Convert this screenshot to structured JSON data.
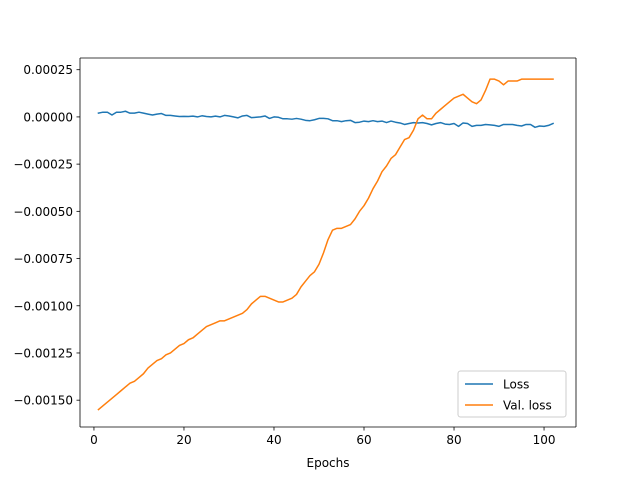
{
  "chart_data": {
    "type": "line",
    "title": "",
    "xlabel": "Epochs",
    "ylabel": "",
    "xlim": [
      -3.1,
      107.1
    ],
    "ylim": [
      -0.001642,
      0.000312
    ],
    "x_ticks": [
      0,
      20,
      40,
      60,
      80,
      100
    ],
    "x_tick_labels": [
      "0",
      "20",
      "40",
      "60",
      "80",
      "100"
    ],
    "y_ticks": [
      0.00025,
      0.0,
      -0.00025,
      -0.0005,
      -0.00075,
      -0.001,
      -0.00125,
      -0.0015
    ],
    "y_tick_labels": [
      "0.00025",
      "0.00000",
      "−0.00025",
      "−0.00050",
      "−0.00075",
      "−0.00100",
      "−0.00125",
      "−0.00150"
    ],
    "grid": false,
    "legend_position": "lower-right",
    "x": [
      1,
      2,
      3,
      4,
      5,
      6,
      7,
      8,
      9,
      10,
      11,
      12,
      13,
      14,
      15,
      16,
      17,
      18,
      19,
      20,
      21,
      22,
      23,
      24,
      25,
      26,
      27,
      28,
      29,
      30,
      31,
      32,
      33,
      34,
      35,
      36,
      37,
      38,
      39,
      40,
      41,
      42,
      43,
      44,
      45,
      46,
      47,
      48,
      49,
      50,
      51,
      52,
      53,
      54,
      55,
      56,
      57,
      58,
      59,
      60,
      61,
      62,
      63,
      64,
      65,
      66,
      67,
      68,
      69,
      70,
      71,
      72,
      73,
      74,
      75,
      76,
      77,
      78,
      79,
      80,
      81,
      82,
      83,
      84,
      85,
      86,
      87,
      88,
      89,
      90,
      91,
      92,
      93,
      94,
      95,
      96,
      97,
      98,
      99,
      100,
      101,
      102
    ],
    "series": [
      {
        "name": "Loss",
        "color": "#1f77b4",
        "values": [
          2e-05,
          2.5e-05,
          2.5e-05,
          1e-05,
          2.5e-05,
          2.5e-05,
          3e-05,
          2e-05,
          2e-05,
          2.5e-05,
          2e-05,
          1.5e-05,
          1e-05,
          1.5e-05,
          1.8e-05,
          8e-06,
          8e-06,
          5e-06,
          2e-06,
          3e-06,
          2e-06,
          4e-06,
          0.0,
          6e-06,
          2e-06,
          0.0,
          4e-06,
          0.0,
          8e-06,
          5e-06,
          0.0,
          -5e-06,
          5e-06,
          8e-06,
          -4e-06,
          -2e-06,
          0.0,
          5e-06,
          -8e-06,
          0.0,
          -2e-06,
          -1e-05,
          -1e-05,
          -1.2e-05,
          -8e-06,
          -1.2e-05,
          -1.8e-05,
          -2e-05,
          -1.5e-05,
          -8e-06,
          -8e-06,
          -1e-05,
          -2e-05,
          -2e-05,
          -2.5e-05,
          -2e-05,
          -1.8e-05,
          -3e-05,
          -2.8e-05,
          -2.2e-05,
          -2.5e-05,
          -2e-05,
          -2.5e-05,
          -2.2e-05,
          -3e-05,
          -2.2e-05,
          -2.8e-05,
          -3.2e-05,
          -4e-05,
          -3.5e-05,
          -3e-05,
          -3.2e-05,
          -3e-05,
          -3.5e-05,
          -4.2e-05,
          -3.5e-05,
          -3e-05,
          -3.8e-05,
          -4e-05,
          -3.5e-05,
          -5e-05,
          -3.2e-05,
          -3.5e-05,
          -5e-05,
          -4.5e-05,
          -4.5e-05,
          -4e-05,
          -4.2e-05,
          -4.5e-05,
          -5e-05,
          -4e-05,
          -4e-05,
          -4e-05,
          -4.5e-05,
          -4.8e-05,
          -4e-05,
          -4e-05,
          -5.5e-05,
          -4.8e-05,
          -5e-05,
          -4.5e-05,
          -3.5e-05
        ]
      },
      {
        "name": "Val. loss",
        "color": "#ff7f0e",
        "values": [
          -0.00155,
          -0.00153,
          -0.00151,
          -0.00149,
          -0.00147,
          -0.00145,
          -0.00143,
          -0.00141,
          -0.0014,
          -0.00138,
          -0.00136,
          -0.00133,
          -0.00131,
          -0.00129,
          -0.00128,
          -0.00126,
          -0.00125,
          -0.00123,
          -0.00121,
          -0.0012,
          -0.00118,
          -0.00117,
          -0.00115,
          -0.00113,
          -0.00111,
          -0.0011,
          -0.00109,
          -0.00108,
          -0.00108,
          -0.00107,
          -0.00106,
          -0.00105,
          -0.00104,
          -0.00102,
          -0.00099,
          -0.00097,
          -0.00095,
          -0.00095,
          -0.00096,
          -0.00097,
          -0.00098,
          -0.00098,
          -0.00097,
          -0.00096,
          -0.00094,
          -0.0009,
          -0.00087,
          -0.00084,
          -0.00082,
          -0.00078,
          -0.00072,
          -0.00065,
          -0.0006,
          -0.00059,
          -0.00059,
          -0.00058,
          -0.00057,
          -0.00054,
          -0.0005,
          -0.00047,
          -0.00043,
          -0.00038,
          -0.00034,
          -0.00029,
          -0.00026,
          -0.00022,
          -0.0002,
          -0.00016,
          -0.00012,
          -0.00011,
          -7e-05,
          -1e-05,
          1e-05,
          -1e-05,
          -1e-05,
          2e-05,
          4e-05,
          6e-05,
          8e-05,
          0.0001,
          0.00011,
          0.00012,
          0.0001,
          8e-05,
          7e-05,
          9e-05,
          0.00014,
          0.0002,
          0.0002,
          0.00019,
          0.00017,
          0.00019,
          0.00019,
          0.00019,
          0.0002,
          0.0002,
          0.0002,
          0.0002,
          0.0002,
          0.0002,
          0.0002,
          0.0002
        ]
      }
    ]
  }
}
